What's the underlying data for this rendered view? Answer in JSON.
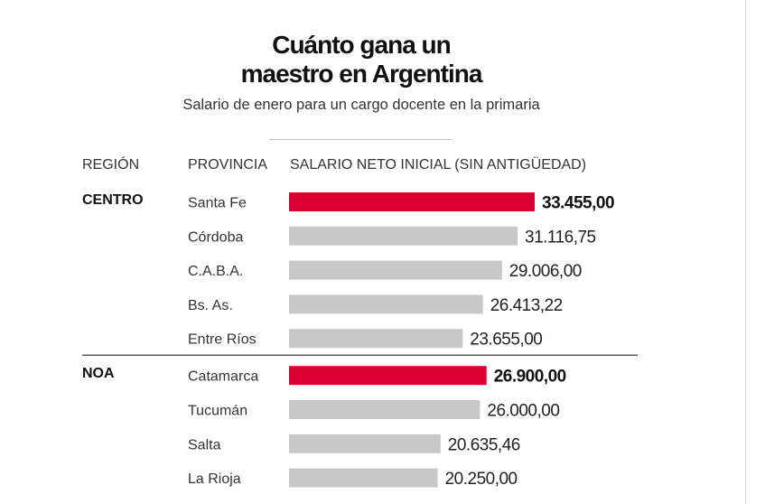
{
  "title_line1": "Cuánto gana un",
  "title_line2": "maestro en Argentina",
  "subtitle": "Salario de enero para un cargo docente en la primaria",
  "headers": {
    "region": "REGIÓN",
    "province": "PROVINCIA",
    "salary": "SALARIO NETO INICIAL (SIN ANTIGÜEDAD)"
  },
  "colors": {
    "highlight": "#d9002f",
    "bar": "#c8c8c8"
  },
  "chart_data": {
    "type": "bar",
    "orientation": "horizontal",
    "groups": [
      {
        "region": "CENTRO",
        "rows": [
          {
            "province": "Santa Fe",
            "value": 33455.0,
            "label": "33.455,00",
            "highlight": true
          },
          {
            "province": "Córdoba",
            "value": 31116.75,
            "label": "31.116,75",
            "highlight": false
          },
          {
            "province": "C.A.B.A.",
            "value": 29006.0,
            "label": "29.006,00",
            "highlight": false
          },
          {
            "province": "Bs. As.",
            "value": 26413.22,
            "label": "26.413,22",
            "highlight": false
          },
          {
            "province": "Entre Ríos",
            "value": 23655.0,
            "label": "23.655,00",
            "highlight": false
          }
        ]
      },
      {
        "region": "NOA",
        "rows": [
          {
            "province": "Catamarca",
            "value": 26900.0,
            "label": "26.900,00",
            "highlight": true
          },
          {
            "province": "Tucumán",
            "value": 26000.0,
            "label": "26.000,00",
            "highlight": false
          },
          {
            "province": "Salta",
            "value": 20635.46,
            "label": "20.635,46",
            "highlight": false
          },
          {
            "province": "La Rioja",
            "value": 20250.0,
            "label": "20.250,00",
            "highlight": false
          }
        ]
      }
    ]
  }
}
